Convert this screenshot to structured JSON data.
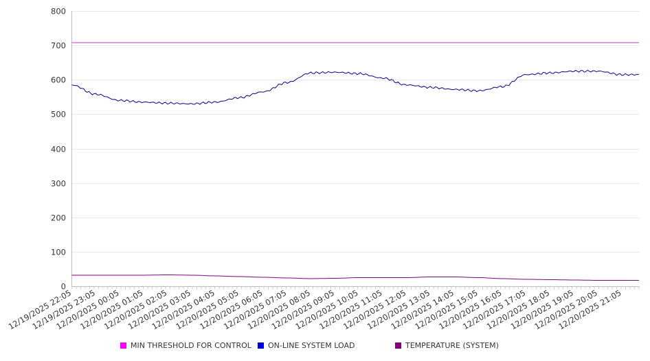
{
  "chart_data": {
    "type": "line",
    "title": "",
    "xlabel": "",
    "ylabel": "",
    "ylim": [
      0,
      800
    ],
    "yticks": [
      0,
      100,
      200,
      300,
      400,
      500,
      600,
      700,
      800
    ],
    "grid": true,
    "legend_position": "bottom",
    "x": [
      "12/19/2025 22:05",
      "12/19/2025 23:05",
      "12/20/2025 00:05",
      "12/20/2025 01:05",
      "12/20/2025 02:05",
      "12/20/2025 03:05",
      "12/20/2025 04:05",
      "12/20/2025 05:05",
      "12/20/2025 06:05",
      "12/20/2025 07:05",
      "12/20/2025 08:05",
      "12/20/2025 09:05",
      "12/20/2025 10:05",
      "12/20/2025 11:05",
      "12/20/2025 12:05",
      "12/20/2025 13:05",
      "12/20/2025 14:05",
      "12/20/2025 15:05",
      "12/20/2025 16:05",
      "12/20/2025 17:05",
      "12/20/2025 18:05",
      "12/20/2025 19:05",
      "12/20/2025 20:05",
      "12/20/2025 21:05"
    ],
    "series": [
      {
        "name": "MIN THRESHOLD FOR CONTROL",
        "color": "#ff00ff",
        "line_color": "#cc33cc",
        "values": [
          708,
          708,
          708,
          708,
          708,
          708,
          708,
          708,
          708,
          708,
          708,
          708,
          708,
          708,
          708,
          708,
          708,
          708,
          708,
          708,
          708,
          708,
          708,
          708
        ]
      },
      {
        "name": "ON-LINE SYSTEM LOAD",
        "color": "#0000dd",
        "line_color": "#00008b",
        "values": [
          585,
          558,
          540,
          535,
          532,
          530,
          535,
          548,
          565,
          592,
          620,
          622,
          618,
          605,
          585,
          578,
          572,
          568,
          580,
          615,
          620,
          625,
          625,
          615
        ]
      },
      {
        "name": "TEMPERATURE (SYSTEM)",
        "color": "#800080",
        "line_color": "#800080",
        "values": [
          32,
          32,
          32,
          32,
          33,
          32,
          30,
          28,
          26,
          24,
          22,
          23,
          25,
          25,
          25,
          27,
          27,
          25,
          22,
          20,
          19,
          18,
          17,
          17
        ]
      }
    ]
  }
}
